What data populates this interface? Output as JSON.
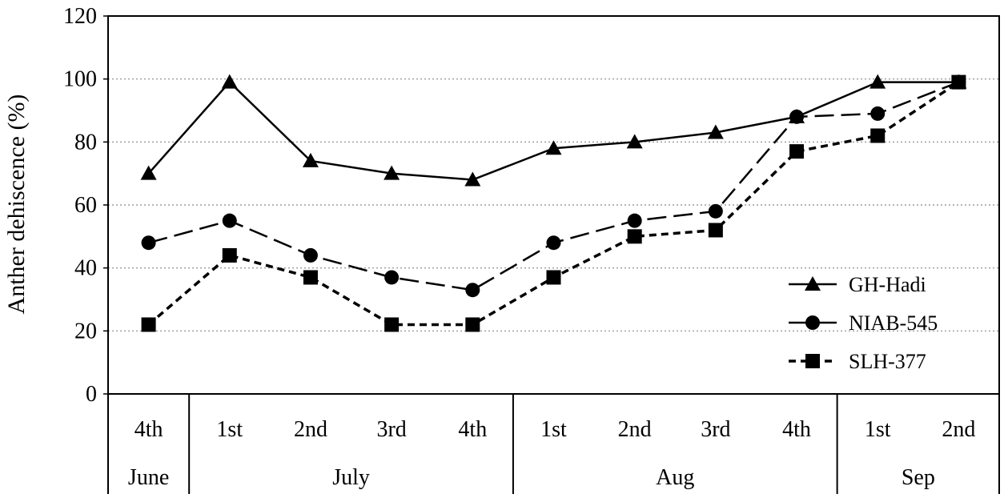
{
  "chart_data": {
    "type": "line",
    "ylabel": "Anther dehiscence (%)",
    "ylim": [
      0,
      120
    ],
    "yticks": [
      0,
      20,
      40,
      60,
      80,
      100,
      120
    ],
    "grid": "horizontal dotted",
    "legend_position": "right",
    "categories": [
      "4th",
      "1st",
      "2nd",
      "3rd",
      "4th",
      "1st",
      "2nd",
      "3rd",
      "4th",
      "1st",
      "2nd"
    ],
    "groups": [
      {
        "label": "June",
        "count": 1
      },
      {
        "label": "July",
        "count": 4
      },
      {
        "label": "Aug",
        "count": 4
      },
      {
        "label": "Sep",
        "count": 2
      }
    ],
    "series": [
      {
        "name": "GH-Hadi",
        "marker": "triangle",
        "line": "solid",
        "values": [
          70,
          99,
          74,
          70,
          68,
          78,
          80,
          83,
          88,
          99,
          99
        ]
      },
      {
        "name": "NIAB-545",
        "marker": "circle",
        "line": "long-dash",
        "values": [
          48,
          55,
          44,
          37,
          33,
          48,
          55,
          58,
          88,
          89,
          99
        ]
      },
      {
        "name": "SLH-377",
        "marker": "square",
        "line": "short-dash",
        "values": [
          22,
          44,
          37,
          22,
          22,
          37,
          50,
          52,
          77,
          82,
          99
        ]
      }
    ]
  }
}
